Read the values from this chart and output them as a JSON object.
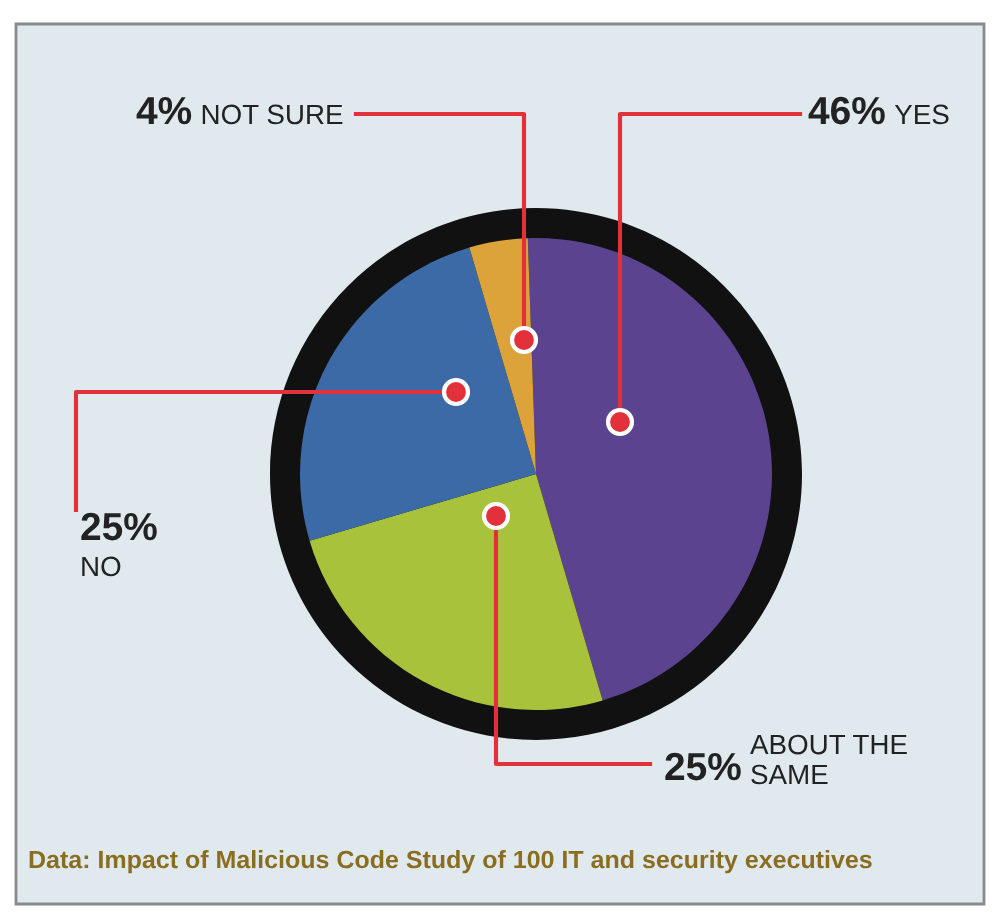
{
  "chart_data": {
    "type": "pie",
    "categories": [
      "YES",
      "ABOUT THE SAME",
      "NO",
      "NOT SURE"
    ],
    "values": [
      46,
      25,
      25,
      4
    ],
    "value_labels": [
      "46%",
      "25%",
      "25%",
      "4%"
    ],
    "colors": [
      "#5b4390",
      "#a9c23c",
      "#3b6aa6",
      "#dba33a"
    ],
    "annotations": [
      "Data: Impact of Malicious Code Study of 100 IT and security executives"
    ]
  }
}
